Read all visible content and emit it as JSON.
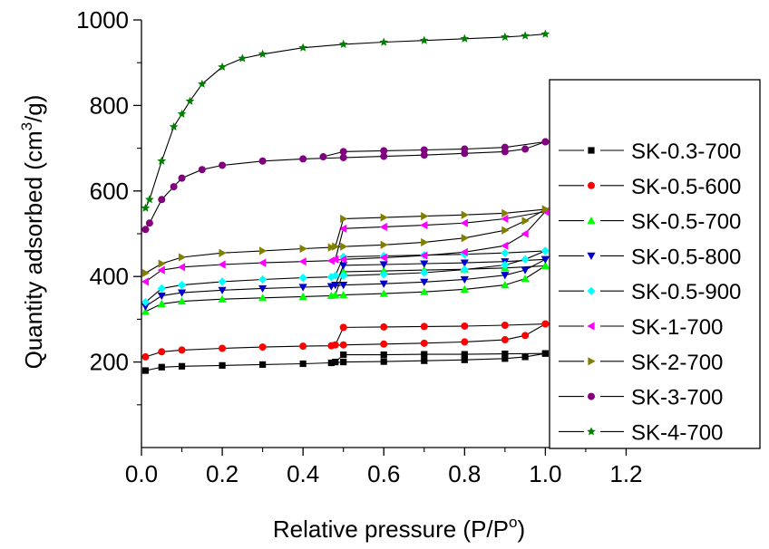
{
  "chart_data": {
    "type": "line",
    "title": "",
    "xlabel": "Relative pressure (P/P",
    "xlabel_sup": "o",
    "xlabel_end": ")",
    "ylabel": "Quantity adsorbed (cm",
    "ylabel_sup": "3",
    "ylabel_end": "/g)",
    "xlim": [
      0,
      1.3
    ],
    "ylim": [
      0,
      1000
    ],
    "xticks": [
      "0.0",
      "0.2",
      "0.4",
      "0.6",
      "0.8",
      "1.0",
      "1.2"
    ],
    "yticks": [
      "200",
      "400",
      "600",
      "800",
      "1000"
    ],
    "xtick_values": [
      0,
      0.2,
      0.4,
      0.6,
      0.8,
      1.0,
      1.2
    ],
    "ytick_values": [
      200,
      400,
      600,
      800,
      1000
    ],
    "grid": false,
    "legend_position": "right",
    "series": [
      {
        "name": "SK-0.3-700",
        "color": "#000000",
        "marker": "square",
        "adsorption": {
          "x": [
            0.01,
            0.05,
            0.1,
            0.2,
            0.3,
            0.4,
            0.47,
            0.5,
            0.6,
            0.7,
            0.8,
            0.9,
            0.95,
            1.0
          ],
          "y": [
            180,
            188,
            190,
            192,
            194,
            196,
            198,
            200,
            201,
            203,
            205,
            208,
            212,
            220
          ]
        },
        "desorption": {
          "x": [
            1.0,
            0.9,
            0.8,
            0.7,
            0.6,
            0.5,
            0.48
          ],
          "y": [
            220,
            219,
            218,
            218,
            217,
            217,
            200
          ]
        }
      },
      {
        "name": "SK-0.5-600",
        "color": "#ff0000",
        "marker": "circle",
        "adsorption": {
          "x": [
            0.01,
            0.05,
            0.1,
            0.2,
            0.3,
            0.4,
            0.47,
            0.5,
            0.6,
            0.7,
            0.8,
            0.9,
            0.95,
            1.0
          ],
          "y": [
            212,
            224,
            228,
            232,
            235,
            237,
            238,
            240,
            242,
            244,
            247,
            252,
            262,
            289
          ]
        },
        "desorption": {
          "x": [
            1.0,
            0.9,
            0.8,
            0.7,
            0.6,
            0.5,
            0.48
          ],
          "y": [
            289,
            286,
            284,
            283,
            282,
            281,
            240
          ]
        }
      },
      {
        "name": "SK-0.5-700",
        "color": "#00ff00",
        "marker": "triangle-up",
        "adsorption": {
          "x": [
            0.01,
            0.05,
            0.1,
            0.2,
            0.3,
            0.4,
            0.47,
            0.5,
            0.6,
            0.7,
            0.8,
            0.9,
            0.95,
            1.0
          ],
          "y": [
            318,
            336,
            342,
            347,
            350,
            353,
            355,
            357,
            360,
            364,
            370,
            380,
            395,
            425
          ]
        },
        "desorption": {
          "x": [
            1.0,
            0.9,
            0.8,
            0.7,
            0.6,
            0.5,
            0.48
          ],
          "y": [
            425,
            420,
            417,
            415,
            413,
            411,
            357
          ]
        }
      },
      {
        "name": "SK-0.5-800",
        "color": "#0000cc",
        "marker": "triangle-down",
        "adsorption": {
          "x": [
            0.01,
            0.05,
            0.1,
            0.2,
            0.3,
            0.4,
            0.47,
            0.5,
            0.6,
            0.7,
            0.8,
            0.9,
            0.95,
            1.0
          ],
          "y": [
            330,
            355,
            362,
            368,
            372,
            375,
            377,
            380,
            383,
            387,
            393,
            403,
            415,
            440
          ]
        },
        "desorption": {
          "x": [
            1.0,
            0.9,
            0.8,
            0.7,
            0.6,
            0.5,
            0.48
          ],
          "y": [
            440,
            435,
            432,
            430,
            428,
            426,
            380
          ]
        }
      },
      {
        "name": "SK-0.5-900",
        "color": "#00ffff",
        "marker": "diamond",
        "adsorption": {
          "x": [
            0.01,
            0.05,
            0.1,
            0.2,
            0.3,
            0.4,
            0.47,
            0.5,
            0.6,
            0.7,
            0.8,
            0.9,
            0.95,
            1.0
          ],
          "y": [
            340,
            372,
            380,
            388,
            393,
            397,
            399,
            402,
            405,
            409,
            416,
            427,
            440,
            460
          ]
        },
        "desorption": {
          "x": [
            1.0,
            0.9,
            0.8,
            0.7,
            0.6,
            0.5,
            0.48
          ],
          "y": [
            460,
            455,
            452,
            450,
            448,
            446,
            402
          ]
        }
      },
      {
        "name": "SK-1-700",
        "color": "#ff00ff",
        "marker": "triangle-left",
        "adsorption": {
          "x": [
            0.01,
            0.05,
            0.1,
            0.2,
            0.3,
            0.4,
            0.47,
            0.5,
            0.6,
            0.7,
            0.8,
            0.9,
            0.95,
            1.0
          ],
          "y": [
            388,
            415,
            422,
            428,
            432,
            435,
            437,
            440,
            444,
            449,
            457,
            472,
            500,
            552
          ]
        },
        "desorption": {
          "x": [
            1.0,
            0.9,
            0.8,
            0.7,
            0.6,
            0.5,
            0.48
          ],
          "y": [
            552,
            535,
            525,
            520,
            516,
            512,
            440
          ]
        }
      },
      {
        "name": "SK-2-700",
        "color": "#808000",
        "marker": "triangle-right",
        "adsorption": {
          "x": [
            0.01,
            0.05,
            0.1,
            0.2,
            0.3,
            0.4,
            0.47,
            0.5,
            0.6,
            0.7,
            0.8,
            0.9,
            0.95,
            1.0
          ],
          "y": [
            408,
            430,
            445,
            455,
            460,
            465,
            468,
            470,
            474,
            480,
            490,
            508,
            530,
            557
          ]
        },
        "desorption": {
          "x": [
            1.0,
            0.9,
            0.8,
            0.7,
            0.6,
            0.5,
            0.48
          ],
          "y": [
            557,
            548,
            544,
            541,
            538,
            535,
            470
          ]
        }
      },
      {
        "name": "SK-3-700",
        "color": "#800080",
        "marker": "circle",
        "adsorption": {
          "x": [
            0.01,
            0.02,
            0.05,
            0.08,
            0.1,
            0.15,
            0.2,
            0.3,
            0.4,
            0.5,
            0.6,
            0.7,
            0.8,
            0.9,
            0.95,
            1.0
          ],
          "y": [
            510,
            525,
            580,
            610,
            630,
            650,
            660,
            670,
            675,
            678,
            681,
            684,
            688,
            692,
            698,
            715
          ]
        },
        "desorption": {
          "x": [
            1.0,
            0.9,
            0.8,
            0.7,
            0.6,
            0.5,
            0.45
          ],
          "y": [
            715,
            702,
            698,
            696,
            694,
            692,
            680
          ]
        }
      },
      {
        "name": "SK-4-700",
        "color": "#008000",
        "marker": "star",
        "adsorption": {
          "x": [
            0.01,
            0.02,
            0.05,
            0.08,
            0.1,
            0.12,
            0.15,
            0.2,
            0.25,
            0.3,
            0.4,
            0.5,
            0.6,
            0.7,
            0.8,
            0.9,
            0.95,
            1.0
          ],
          "y": [
            560,
            580,
            670,
            750,
            780,
            810,
            850,
            890,
            910,
            920,
            935,
            943,
            948,
            952,
            956,
            960,
            963,
            967
          ]
        },
        "desorption": {
          "x": [],
          "y": []
        }
      }
    ]
  }
}
